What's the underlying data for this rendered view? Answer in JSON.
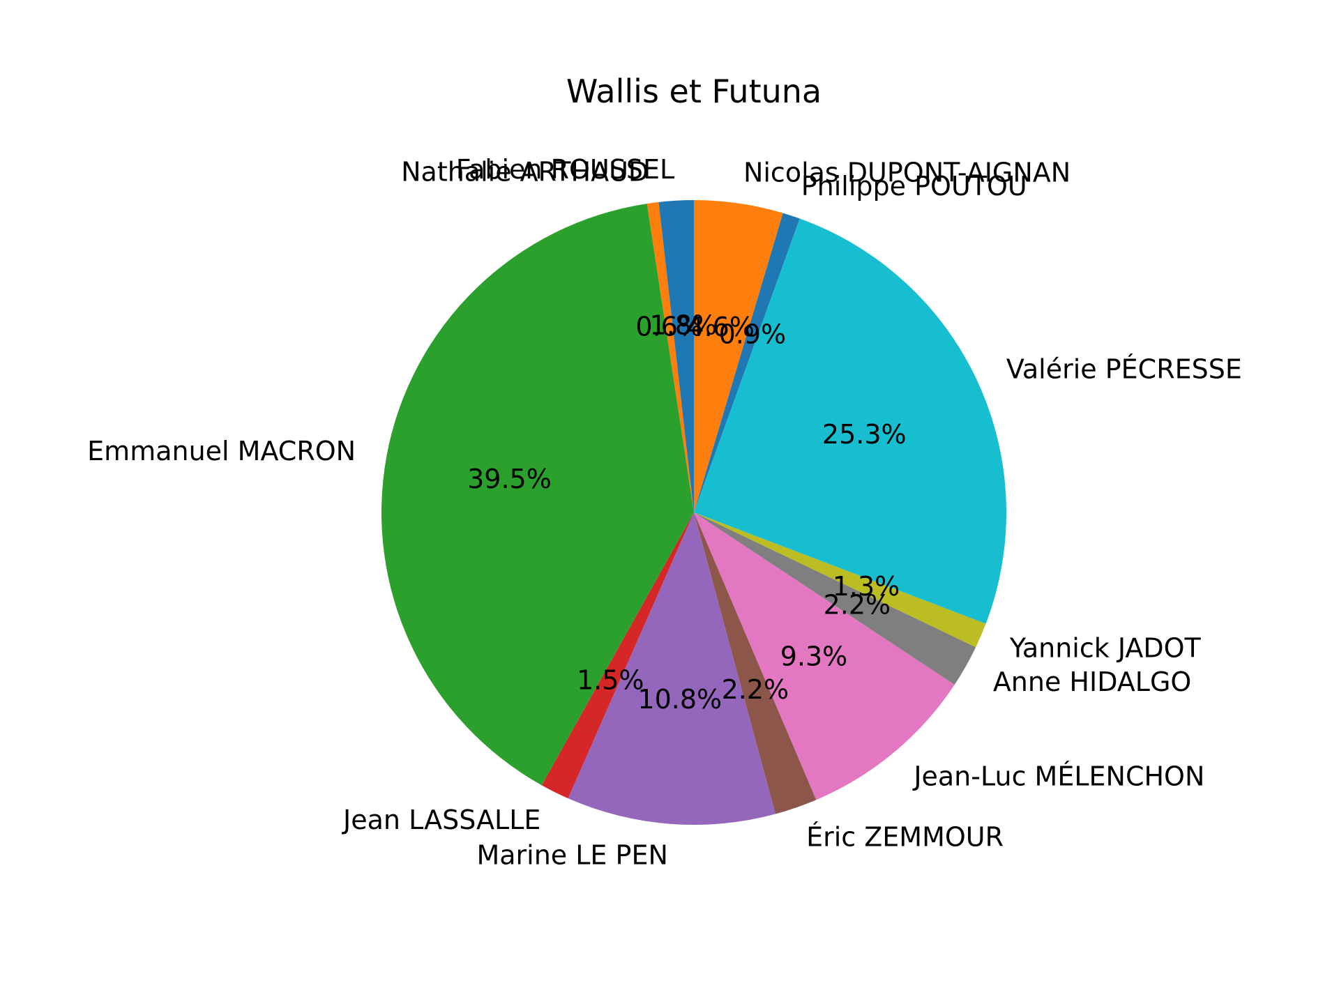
{
  "chart_data": {
    "type": "pie",
    "title": "Wallis et Futuna",
    "start_angle_deg": 90,
    "direction": "clockwise",
    "slices": [
      {
        "label": "Nicolas DUPONT-AIGNAN",
        "value": 4.6,
        "pct_label": "4.6%",
        "color": "#ff7f0e"
      },
      {
        "label": "Philippe POUTOU",
        "value": 0.9,
        "pct_label": "0.9%",
        "color": "#1f77b4"
      },
      {
        "label": "Valérie PÉCRESSE",
        "value": 25.3,
        "pct_label": "25.3%",
        "color": "#17becf"
      },
      {
        "label": "Yannick JADOT",
        "value": 1.3,
        "pct_label": "1.3%",
        "color": "#bcbd22"
      },
      {
        "label": "Anne HIDALGO",
        "value": 2.2,
        "pct_label": "2.2%",
        "color": "#7f7f7f"
      },
      {
        "label": "Jean-Luc MÉLENCHON",
        "value": 9.3,
        "pct_label": "9.3%",
        "color": "#e377c2"
      },
      {
        "label": "Éric ZEMMOUR",
        "value": 2.2,
        "pct_label": "2.2%",
        "color": "#8c564b"
      },
      {
        "label": "Marine LE PEN",
        "value": 10.8,
        "pct_label": "10.8%",
        "color": "#9467bd"
      },
      {
        "label": "Jean LASSALLE",
        "value": 1.5,
        "pct_label": "1.5%",
        "color": "#d62728"
      },
      {
        "label": "Emmanuel MACRON",
        "value": 39.5,
        "pct_label": "39.5%",
        "color": "#2ca02c"
      },
      {
        "label": "Nathalie ARTHAUD",
        "value": 0.6,
        "pct_label": "0.6%",
        "color": "#ff7f0e"
      },
      {
        "label": "Fabien ROUSSEL",
        "value": 1.8,
        "pct_label": "1.8%",
        "color": "#1f77b4"
      }
    ]
  }
}
